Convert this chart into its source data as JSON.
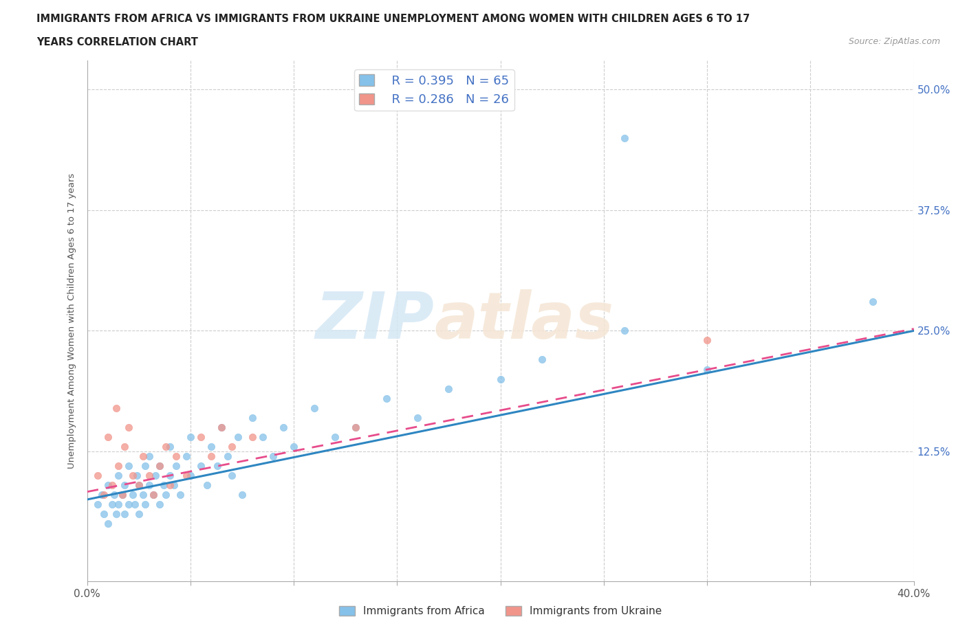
{
  "title_line1": "IMMIGRANTS FROM AFRICA VS IMMIGRANTS FROM UKRAINE UNEMPLOYMENT AMONG WOMEN WITH CHILDREN AGES 6 TO 17",
  "title_line2": "YEARS CORRELATION CHART",
  "source": "Source: ZipAtlas.com",
  "ylabel": "Unemployment Among Women with Children Ages 6 to 17 years",
  "xlim": [
    0.0,
    0.4
  ],
  "ylim": [
    -0.01,
    0.53
  ],
  "yticks": [
    0.0,
    0.125,
    0.25,
    0.375,
    0.5
  ],
  "ytick_labels": [
    "",
    "12.5%",
    "25.0%",
    "37.5%",
    "50.0%"
  ],
  "xticks": [
    0.0,
    0.05,
    0.1,
    0.15,
    0.2,
    0.25,
    0.3,
    0.35,
    0.4
  ],
  "xtick_labels": [
    "0.0%",
    "",
    "",
    "",
    "",
    "",
    "",
    "",
    "40.0%"
  ],
  "africa_color": "#85c1e9",
  "ukraine_color": "#f1948a",
  "africa_line_color": "#2e86c1",
  "ukraine_line_color": "#e74c8b",
  "watermark_1": "ZIP",
  "watermark_2": "atlas",
  "legend_R_africa": "R = 0.395",
  "legend_N_africa": "N = 65",
  "legend_R_ukraine": "R = 0.286",
  "legend_N_ukraine": "N = 26",
  "africa_scatter_x": [
    0.005,
    0.007,
    0.008,
    0.01,
    0.01,
    0.012,
    0.013,
    0.014,
    0.015,
    0.015,
    0.017,
    0.018,
    0.018,
    0.02,
    0.02,
    0.022,
    0.023,
    0.024,
    0.025,
    0.025,
    0.027,
    0.028,
    0.028,
    0.03,
    0.03,
    0.032,
    0.033,
    0.035,
    0.035,
    0.037,
    0.038,
    0.04,
    0.04,
    0.042,
    0.043,
    0.045,
    0.048,
    0.05,
    0.05,
    0.055,
    0.058,
    0.06,
    0.063,
    0.065,
    0.068,
    0.07,
    0.073,
    0.075,
    0.08,
    0.085,
    0.09,
    0.095,
    0.1,
    0.11,
    0.12,
    0.13,
    0.145,
    0.16,
    0.175,
    0.2,
    0.22,
    0.26,
    0.3,
    0.26,
    0.38
  ],
  "africa_scatter_y": [
    0.07,
    0.08,
    0.06,
    0.05,
    0.09,
    0.07,
    0.08,
    0.06,
    0.1,
    0.07,
    0.08,
    0.06,
    0.09,
    0.07,
    0.11,
    0.08,
    0.07,
    0.1,
    0.09,
    0.06,
    0.08,
    0.11,
    0.07,
    0.09,
    0.12,
    0.08,
    0.1,
    0.07,
    0.11,
    0.09,
    0.08,
    0.1,
    0.13,
    0.09,
    0.11,
    0.08,
    0.12,
    0.1,
    0.14,
    0.11,
    0.09,
    0.13,
    0.11,
    0.15,
    0.12,
    0.1,
    0.14,
    0.08,
    0.16,
    0.14,
    0.12,
    0.15,
    0.13,
    0.17,
    0.14,
    0.15,
    0.18,
    0.16,
    0.19,
    0.2,
    0.22,
    0.25,
    0.21,
    0.45,
    0.28
  ],
  "ukraine_scatter_x": [
    0.005,
    0.008,
    0.01,
    0.012,
    0.014,
    0.015,
    0.017,
    0.018,
    0.02,
    0.022,
    0.025,
    0.027,
    0.03,
    0.032,
    0.035,
    0.038,
    0.04,
    0.043,
    0.048,
    0.055,
    0.06,
    0.065,
    0.07,
    0.08,
    0.13,
    0.3
  ],
  "ukraine_scatter_y": [
    0.1,
    0.08,
    0.14,
    0.09,
    0.17,
    0.11,
    0.08,
    0.13,
    0.15,
    0.1,
    0.09,
    0.12,
    0.1,
    0.08,
    0.11,
    0.13,
    0.09,
    0.12,
    0.1,
    0.14,
    0.12,
    0.15,
    0.13,
    0.14,
    0.15,
    0.24
  ],
  "africa_trendline_x": [
    0.0,
    0.4
  ],
  "africa_trendline_y": [
    0.075,
    0.25
  ],
  "ukraine_trendline_x": [
    0.0,
    0.4
  ],
  "ukraine_trendline_y": [
    0.083,
    0.252
  ]
}
